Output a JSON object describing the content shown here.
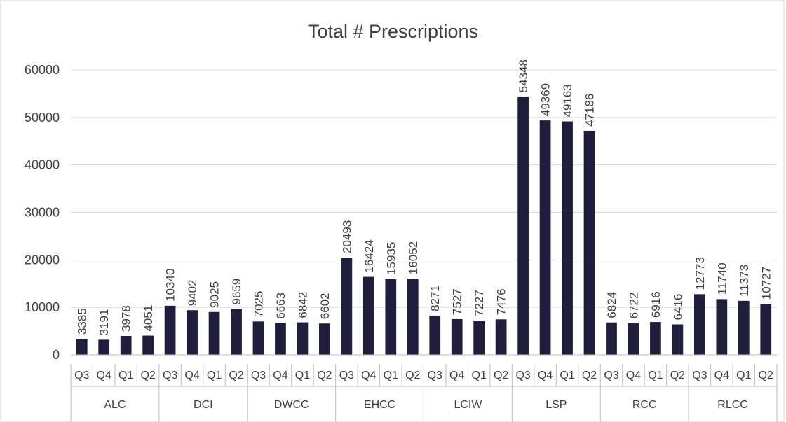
{
  "chart_data": {
    "type": "bar",
    "title": "Total # Prescriptions",
    "xlabel": "",
    "ylabel": "",
    "ylim": [
      0,
      60000
    ],
    "yticks": [
      "0",
      "10000",
      "20000",
      "30000",
      "40000",
      "50000",
      "60000"
    ],
    "grid": true,
    "legend": "none",
    "bar_color": "#1f1f3d",
    "groups": [
      {
        "name": "ALC",
        "quarters": [
          "Q3",
          "Q4",
          "Q1",
          "Q2"
        ],
        "values": [
          3385,
          3191,
          3978,
          4051
        ]
      },
      {
        "name": "DCI",
        "quarters": [
          "Q3",
          "Q4",
          "Q1",
          "Q2"
        ],
        "values": [
          10340,
          9402,
          9025,
          9659
        ]
      },
      {
        "name": "DWCC",
        "quarters": [
          "Q3",
          "Q4",
          "Q1",
          "Q2"
        ],
        "values": [
          7025,
          6663,
          6842,
          6602
        ]
      },
      {
        "name": "EHCC",
        "quarters": [
          "Q3",
          "Q4",
          "Q1",
          "Q2"
        ],
        "values": [
          20493,
          16424,
          15935,
          16052
        ]
      },
      {
        "name": "LCIW",
        "quarters": [
          "Q3",
          "Q4",
          "Q1",
          "Q2"
        ],
        "values": [
          8271,
          7527,
          7227,
          7476
        ]
      },
      {
        "name": "LSP",
        "quarters": [
          "Q3",
          "Q4",
          "Q1",
          "Q2"
        ],
        "values": [
          54348,
          49369,
          49163,
          47186
        ]
      },
      {
        "name": "RCC",
        "quarters": [
          "Q3",
          "Q4",
          "Q1",
          "Q2"
        ],
        "values": [
          6824,
          6722,
          6916,
          6416
        ]
      },
      {
        "name": "RLCC",
        "quarters": [
          "Q3",
          "Q4",
          "Q1",
          "Q2"
        ],
        "values": [
          12773,
          11740,
          11373,
          10727
        ]
      }
    ]
  }
}
